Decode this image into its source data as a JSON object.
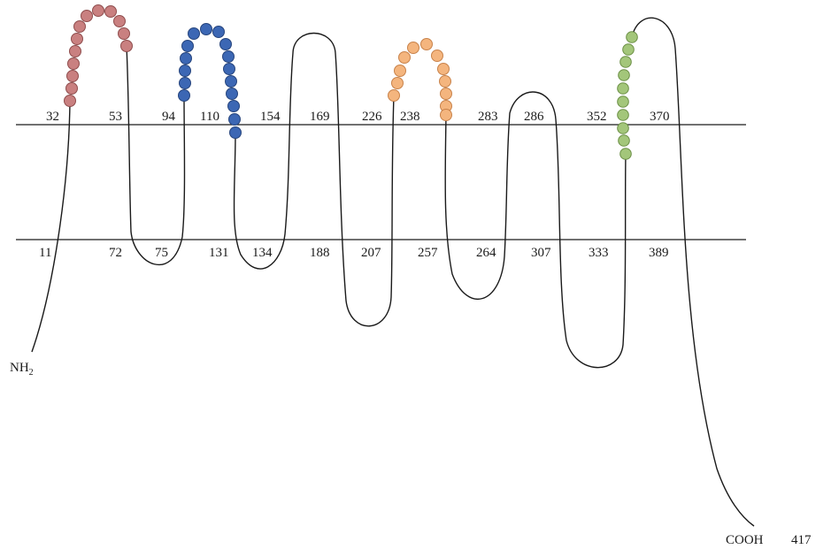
{
  "colors": {
    "chain": "#1a1a1a",
    "membrane": "#1a1a1a",
    "segment_1": "#c98080",
    "segment_1_stroke": "#8f4d4d",
    "segment_2": "#3c67b4",
    "segment_2_stroke": "#27457d",
    "segment_3": "#f4b57e",
    "segment_3_stroke": "#c8824a",
    "segment_4": "#a3c67a",
    "segment_4_stroke": "#6b8f45"
  },
  "top_numbers": [
    "32",
    "53",
    "94",
    "110",
    "154",
    "169",
    "226",
    "238",
    "283",
    "286",
    "352",
    "370"
  ],
  "bottom_numbers": [
    "11",
    "72",
    "75",
    "131",
    "134",
    "188",
    "207",
    "257",
    "264",
    "307",
    "333",
    "389"
  ],
  "n_terminus": {
    "text": "NH",
    "sub": "2"
  },
  "c_terminus": {
    "text": "COOH",
    "position": "417"
  }
}
